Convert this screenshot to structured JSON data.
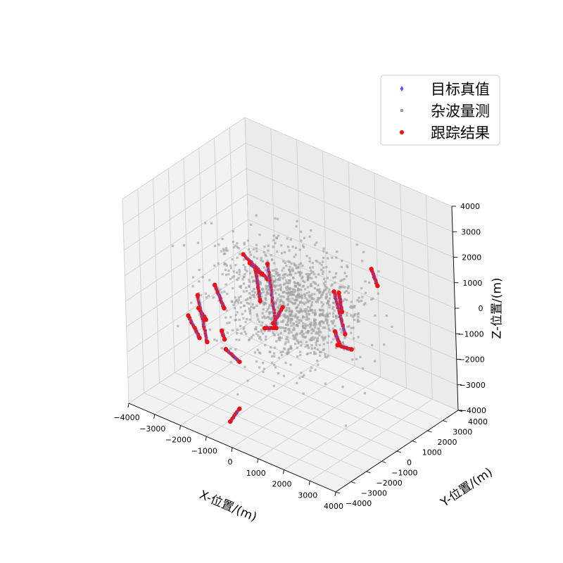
{
  "chart_data": {
    "type": "scatter",
    "projection": "3d",
    "xlabel": "X-位置/(m)",
    "ylabel": "Y-位置/(m)",
    "zlabel": "Z-位置/(m)",
    "xlim": [
      -4000,
      4000
    ],
    "ylim": [
      -4000,
      4000
    ],
    "zlim": [
      -4000,
      4000
    ],
    "xticks": [
      -4000,
      -3000,
      -2000,
      -1000,
      0,
      1000,
      2000,
      3000,
      4000
    ],
    "yticks": [
      -4000,
      -3000,
      -2000,
      -1000,
      0,
      1000,
      2000,
      3000,
      4000
    ],
    "zticks": [
      -4000,
      -3000,
      -2000,
      -1000,
      0,
      1000,
      2000,
      3000,
      4000
    ],
    "grid": true,
    "legend_position": "top-right",
    "colors": {
      "truth": "#5555ff",
      "clutter": "#9e9e9e",
      "track": "#ee1111"
    },
    "series": [
      {
        "name": "目标真值",
        "marker": "diamond",
        "color": "#5555ff"
      },
      {
        "name": "杂波量测",
        "marker": "square",
        "color": "#9e9e9e"
      },
      {
        "name": "跟踪结果",
        "marker": "circle",
        "color": "#ee1111"
      }
    ],
    "trajectories": [
      {
        "start": [
          -1600,
          -300,
          1400
        ],
        "end": [
          -800,
          -100,
          700
        ]
      },
      {
        "start": [
          2300,
          1500,
          1800
        ],
        "end": [
          2400,
          1700,
          1100
        ]
      },
      {
        "start": [
          -2200,
          -1200,
          300
        ],
        "end": [
          -1800,
          -1300,
          -400
        ]
      },
      {
        "start": [
          -1500,
          300,
          600
        ],
        "end": [
          -1300,
          200,
          -500
        ]
      },
      {
        "start": [
          -600,
          -400,
          1500
        ],
        "end": [
          -700,
          200,
          -1300
        ]
      },
      {
        "start": [
          1300,
          700,
          800
        ],
        "end": [
          1500,
          1000,
          -900
        ]
      },
      {
        "start": [
          -2700,
          -1500,
          -200
        ],
        "end": [
          -2200,
          -1800,
          -1700
        ]
      },
      {
        "start": [
          -1600,
          -1600,
          -1800
        ],
        "end": [
          -1200,
          -1400,
          -2200
        ]
      },
      {
        "start": [
          -3400,
          -1000,
          -1500
        ],
        "end": [
          -2800,
          -1300,
          -2000
        ]
      },
      {
        "start": [
          -1300,
          1000,
          -1700
        ],
        "end": [
          -1100,
          1300,
          -1100
        ]
      },
      {
        "start": [
          -1700,
          -1300,
          -4800
        ],
        "end": [
          -1200,
          -1500,
          -4000
        ]
      },
      {
        "start": [
          1000,
          1500,
          300
        ],
        "end": [
          1100,
          1500,
          -400
        ]
      },
      {
        "start": [
          700,
          1800,
          -2000
        ],
        "end": [
          1000,
          2200,
          -2200
        ]
      },
      {
        "start": [
          -2500,
          -1800,
          -500
        ],
        "end": [
          -2100,
          -2000,
          -700
        ]
      },
      {
        "start": [
          -1800,
          -1500,
          -1200
        ],
        "end": [
          -1700,
          -1500,
          -1500
        ]
      },
      {
        "start": [
          800,
          1500,
          -1300
        ],
        "end": [
          900,
          1600,
          -1800
        ]
      },
      {
        "start": [
          -600,
          -700,
          -900
        ],
        "end": [
          -300,
          -600,
          -800
        ]
      },
      {
        "start": [
          -1600,
          100,
          900
        ],
        "end": [
          -1200,
          200,
          600
        ]
      }
    ],
    "clutter": {
      "count": 1200,
      "x_range": [
        -3500,
        3500
      ],
      "y_range": [
        -3000,
        3000
      ],
      "z_range": [
        -3000,
        3000
      ],
      "distribution": "concentrated near origin"
    }
  }
}
